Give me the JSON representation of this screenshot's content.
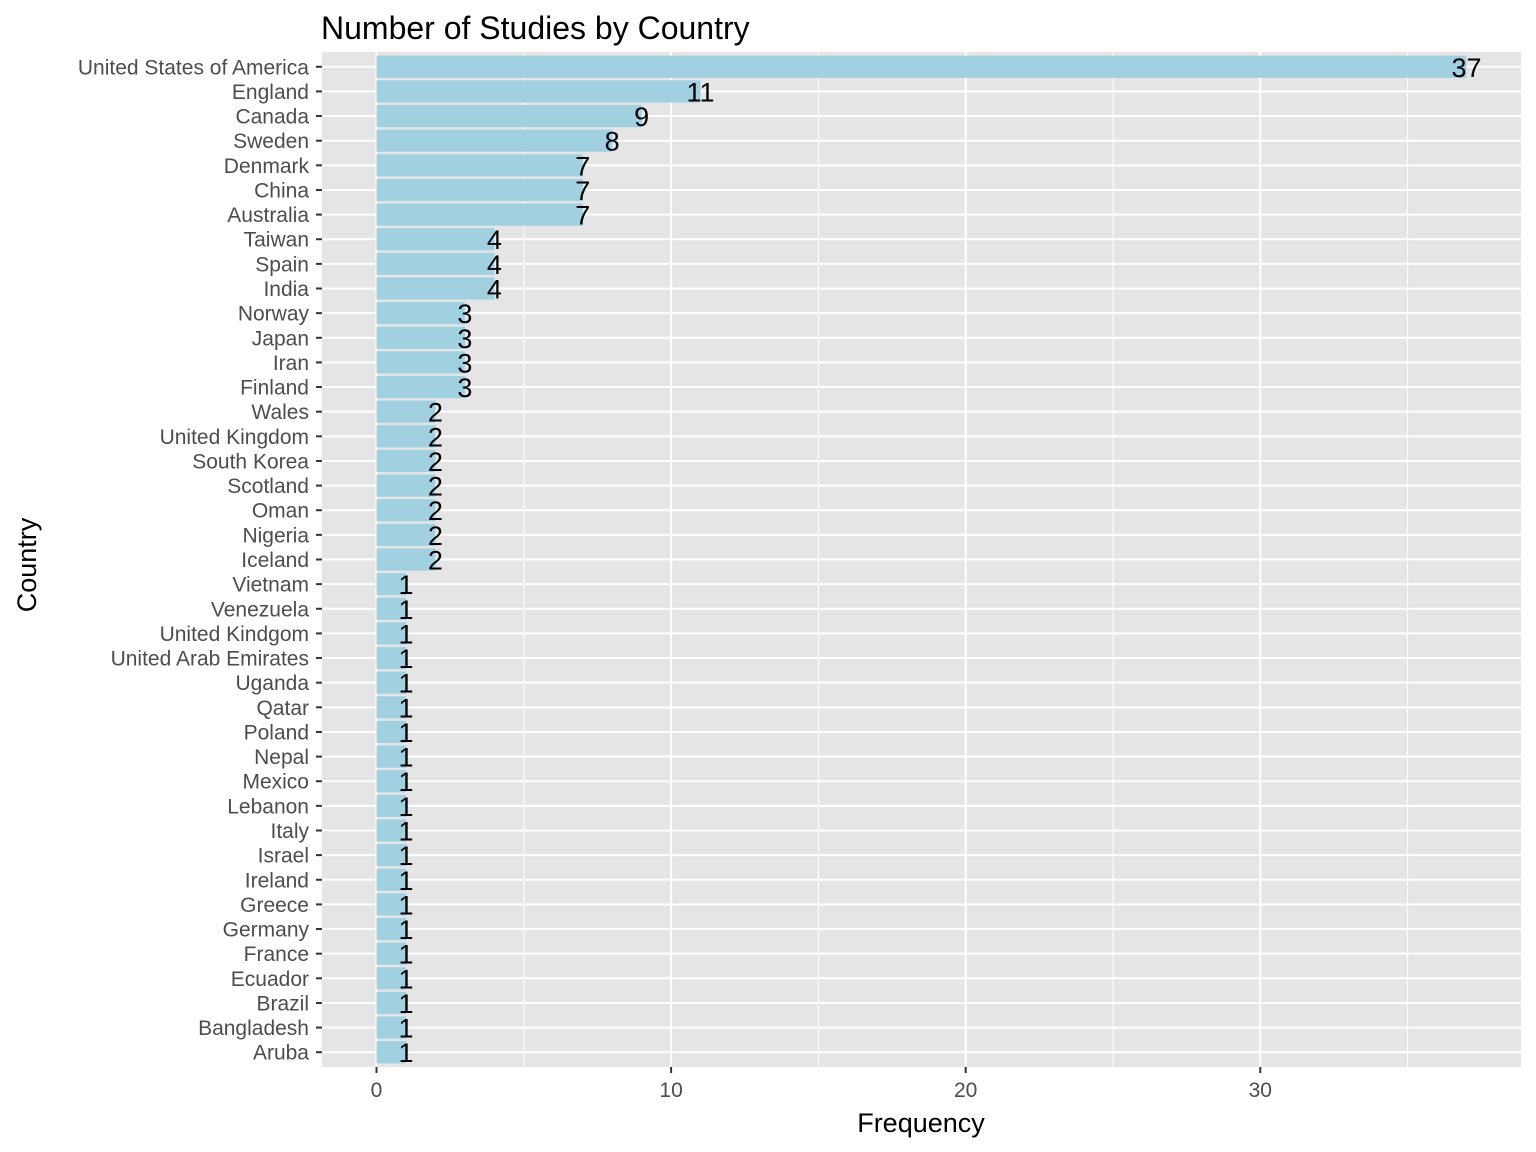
{
  "chart_data": {
    "type": "bar",
    "orientation": "horizontal",
    "title": "Number of Studies by Country",
    "xlabel": "Frequency",
    "ylabel": "Country",
    "xlim": [
      -1.85,
      38.85
    ],
    "x_ticks": [
      0,
      10,
      20,
      30
    ],
    "x_tick_labels": [
      "0",
      "10",
      "20",
      "30"
    ],
    "grid": true,
    "legend": "none",
    "bar_color": "#a1d0e0",
    "panel_color": "#e5e5e5",
    "categories": [
      "United States of America",
      "England",
      "Canada",
      "Sweden",
      "Denmark",
      "China",
      "Australia",
      "Taiwan",
      "Spain",
      "India",
      "Norway",
      "Japan",
      "Iran",
      "Finland",
      "Wales",
      "United Kingdom",
      "South Korea",
      "Scotland",
      "Oman",
      "Nigeria",
      "Iceland",
      "Vietnam",
      "Venezuela",
      "United Kindgom",
      "United Arab Emirates",
      "Uganda",
      "Qatar",
      "Poland",
      "Nepal",
      "Mexico",
      "Lebanon",
      "Italy",
      "Israel",
      "Ireland",
      "Greece",
      "Germany",
      "France",
      "Ecuador",
      "Brazil",
      "Bangladesh",
      "Aruba"
    ],
    "values": [
      37,
      11,
      9,
      8,
      7,
      7,
      7,
      4,
      4,
      4,
      3,
      3,
      3,
      3,
      2,
      2,
      2,
      2,
      2,
      2,
      2,
      1,
      1,
      1,
      1,
      1,
      1,
      1,
      1,
      1,
      1,
      1,
      1,
      1,
      1,
      1,
      1,
      1,
      1,
      1,
      1
    ],
    "data_labels": [
      "37",
      "11",
      "9",
      "8",
      "7",
      "7",
      "7",
      "4",
      "4",
      "4",
      "3",
      "3",
      "3",
      "3",
      "2",
      "2",
      "2",
      "2",
      "2",
      "2",
      "2",
      "1",
      "1",
      "1",
      "1",
      "1",
      "1",
      "1",
      "1",
      "1",
      "1",
      "1",
      "1",
      "1",
      "1",
      "1",
      "1",
      "1",
      "1",
      "1",
      "1"
    ]
  }
}
